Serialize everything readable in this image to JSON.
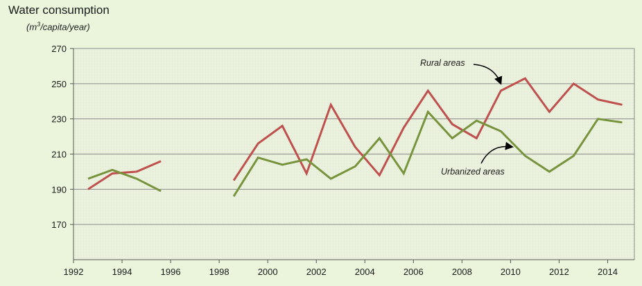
{
  "chart_data": {
    "type": "line",
    "title": "Water consumption",
    "unit_prefix": "(m",
    "unit_sup": "3",
    "unit_suffix": "/capita/year)",
    "ylim": [
      150,
      270
    ],
    "y_ticks": [
      170,
      190,
      210,
      230,
      250,
      270
    ],
    "x_ticks": [
      1992,
      1994,
      1996,
      1998,
      2000,
      2002,
      2004,
      2006,
      2008,
      2010,
      2012,
      2014
    ],
    "xlim": [
      1992,
      2015.1
    ],
    "grid": true,
    "series": [
      {
        "name": "Rural areas",
        "color": "#c0504d",
        "segments": [
          {
            "x": [
              1992.6,
              1993.6,
              1994.6,
              1995.6
            ],
            "y": [
              190,
              199,
              200,
              206
            ]
          },
          {
            "x": [
              1998.6,
              1999.6,
              2000.6,
              2001.6,
              2002.6,
              2003.6,
              2004.6,
              2005.6,
              2006.6,
              2007.6,
              2008.6,
              2009.6,
              2010.6,
              2011.6,
              2012.6,
              2013.6,
              2014.6
            ],
            "y": [
              195,
              216,
              226,
              199,
              238,
              214,
              198,
              225,
              246,
              227,
              219,
              246,
              253,
              234,
              250,
              241,
              238
            ]
          }
        ]
      },
      {
        "name": "Urbanized areas",
        "color": "#77933c",
        "segments": [
          {
            "x": [
              1992.6,
              1993.6,
              1994.6,
              1995.6
            ],
            "y": [
              196,
              201,
              196,
              189
            ]
          },
          {
            "x": [
              1998.6,
              1999.6,
              2000.6,
              2001.6,
              2002.6,
              2003.6,
              2004.6,
              2005.6,
              2006.6,
              2007.6,
              2008.6,
              2009.6,
              2010.6,
              2011.6,
              2012.6,
              2013.6,
              2014.6
            ],
            "y": [
              186,
              208,
              204,
              207,
              196,
              203,
              219,
              199,
              234,
              219,
              229,
              223,
              209,
              200,
              209,
              230,
              228
            ]
          }
        ]
      }
    ],
    "annotations": [
      {
        "text": "Rural areas",
        "series": "Rural areas"
      },
      {
        "text": "Urbanized areas",
        "series": "Urbanized areas"
      }
    ]
  }
}
